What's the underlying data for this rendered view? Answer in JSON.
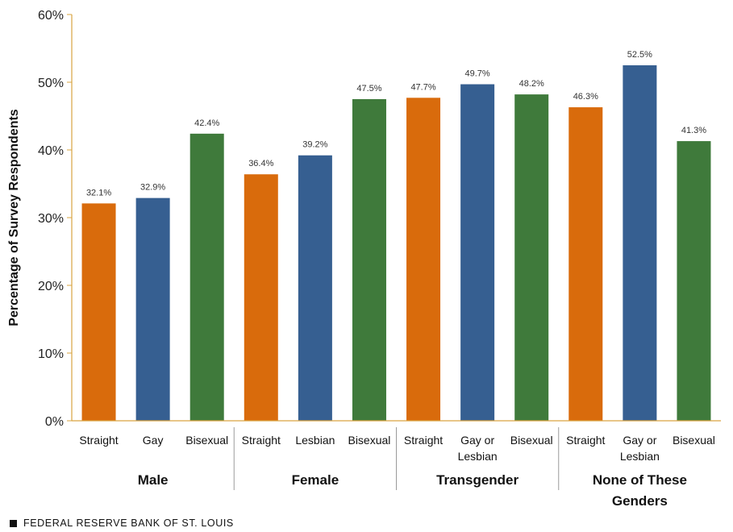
{
  "chart_data": {
    "type": "bar",
    "ylabel": "Percentage of Survey Respondents",
    "ylim": [
      0,
      60
    ],
    "yticks": [
      "0%",
      "10%",
      "20%",
      "30%",
      "40%",
      "50%",
      "60%"
    ],
    "grid": false,
    "groups": [
      {
        "name": "Male",
        "bars": [
          {
            "category": [
              "Straight"
            ],
            "value": 32.1,
            "label": "32.1%",
            "color": "#D96B0C"
          },
          {
            "category": [
              "Gay"
            ],
            "value": 32.9,
            "label": "32.9%",
            "color": "#365F91"
          },
          {
            "category": [
              "Bisexual"
            ],
            "value": 42.4,
            "label": "42.4%",
            "color": "#3F7A3B"
          }
        ]
      },
      {
        "name": "Female",
        "bars": [
          {
            "category": [
              "Straight"
            ],
            "value": 36.4,
            "label": "36.4%",
            "color": "#D96B0C"
          },
          {
            "category": [
              "Lesbian"
            ],
            "value": 39.2,
            "label": "39.2%",
            "color": "#365F91"
          },
          {
            "category": [
              "Bisexual"
            ],
            "value": 47.5,
            "label": "47.5%",
            "color": "#3F7A3B"
          }
        ]
      },
      {
        "name": "Transgender",
        "bars": [
          {
            "category": [
              "Straight"
            ],
            "value": 47.7,
            "label": "47.7%",
            "color": "#D96B0C"
          },
          {
            "category": [
              "Gay or",
              "Lesbian"
            ],
            "value": 49.7,
            "label": "49.7%",
            "color": "#365F91"
          },
          {
            "category": [
              "Bisexual"
            ],
            "value": 48.2,
            "label": "48.2%",
            "color": "#3F7A3B"
          }
        ]
      },
      {
        "name": "None of These Genders",
        "name_lines": [
          "None of These",
          "Genders"
        ],
        "bars": [
          {
            "category": [
              "Straight"
            ],
            "value": 46.3,
            "label": "46.3%",
            "color": "#D96B0C"
          },
          {
            "category": [
              "Gay or",
              "Lesbian"
            ],
            "value": 52.5,
            "label": "52.5%",
            "color": "#365F91"
          },
          {
            "category": [
              "Bisexual"
            ],
            "value": 41.3,
            "label": "41.3%",
            "color": "#3F7A3B"
          }
        ]
      }
    ],
    "axis_color": "#D9A441"
  },
  "source": "FEDERAL RESERVE BANK OF ST. LOUIS"
}
